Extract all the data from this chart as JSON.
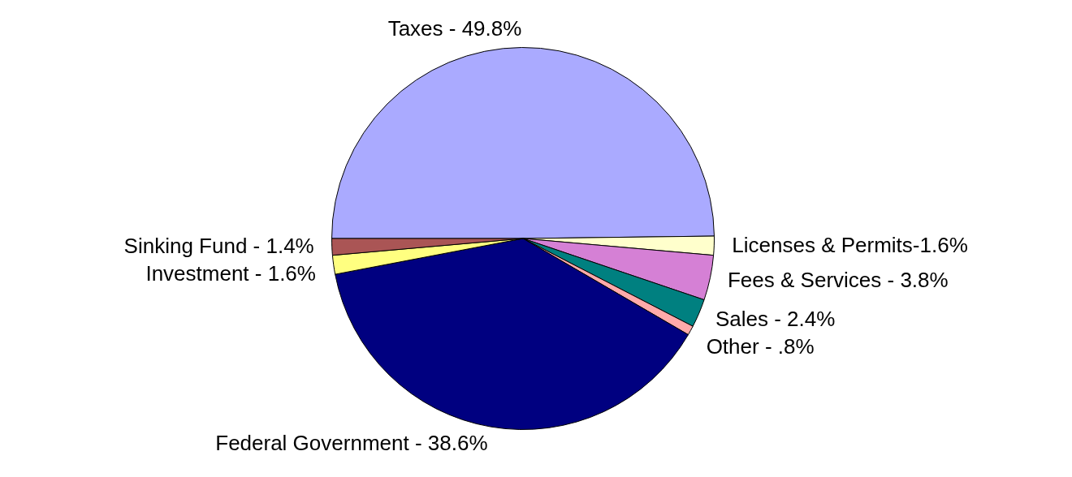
{
  "chart_data": {
    "type": "pie",
    "categories": [
      "Taxes - 49.8%",
      "Licenses & Permits-1.6%",
      "Fees & Services - 3.8%",
      "Sales - 2.4%",
      "Other - .8%",
      "Federal Government - 38.6%",
      "Investment - 1.6%",
      "Sinking Fund - 1.4%"
    ],
    "values": [
      49.8,
      1.6,
      3.8,
      2.4,
      0.8,
      38.6,
      1.6,
      1.4
    ],
    "colors": [
      "#aaaaff",
      "#ffffcc",
      "#d580d5",
      "#008080",
      "#ffaaaa",
      "#000080",
      "#ffff80",
      "#aa5555"
    ],
    "legend": false
  }
}
